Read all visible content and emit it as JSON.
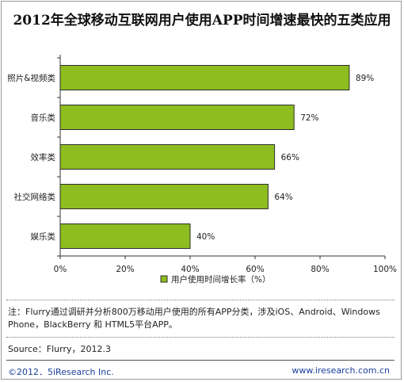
{
  "chart_data": {
    "type": "bar",
    "orientation": "horizontal",
    "title": "2012年全球移动互联网用户使用APP时间增速最快的五类应用",
    "categories": [
      "照片&视频类",
      "音乐类",
      "效率类",
      "社交网络类",
      "娱乐类"
    ],
    "series": [
      {
        "name": "用户使用时间增长率（%）",
        "values": [
          89,
          72,
          66,
          64,
          40
        ],
        "labels": [
          "89%",
          "72%",
          "66%",
          "64%",
          "40%"
        ]
      }
    ],
    "xlim": [
      0,
      100
    ],
    "xticks": [
      0,
      20,
      40,
      60,
      80,
      100
    ],
    "xtick_labels": [
      "0%",
      "20%",
      "40%",
      "60%",
      "80%",
      "100%"
    ],
    "grid": false,
    "legend_position": "bottom",
    "bar_color": "#8dbd1f",
    "bar_border_color": "#2d2d2d"
  },
  "footer": {
    "note": "注：Flurry通过调研并分析800万移动用户使用的所有APP分类，涉及iOS、Android、Windows Phone，BlackBerry 和 HTML5平台APP。",
    "source": "Source：Flurry，2012.3",
    "copyright": "©2012．5iResearch Inc.",
    "website": "www.iresearch.com.cn"
  }
}
